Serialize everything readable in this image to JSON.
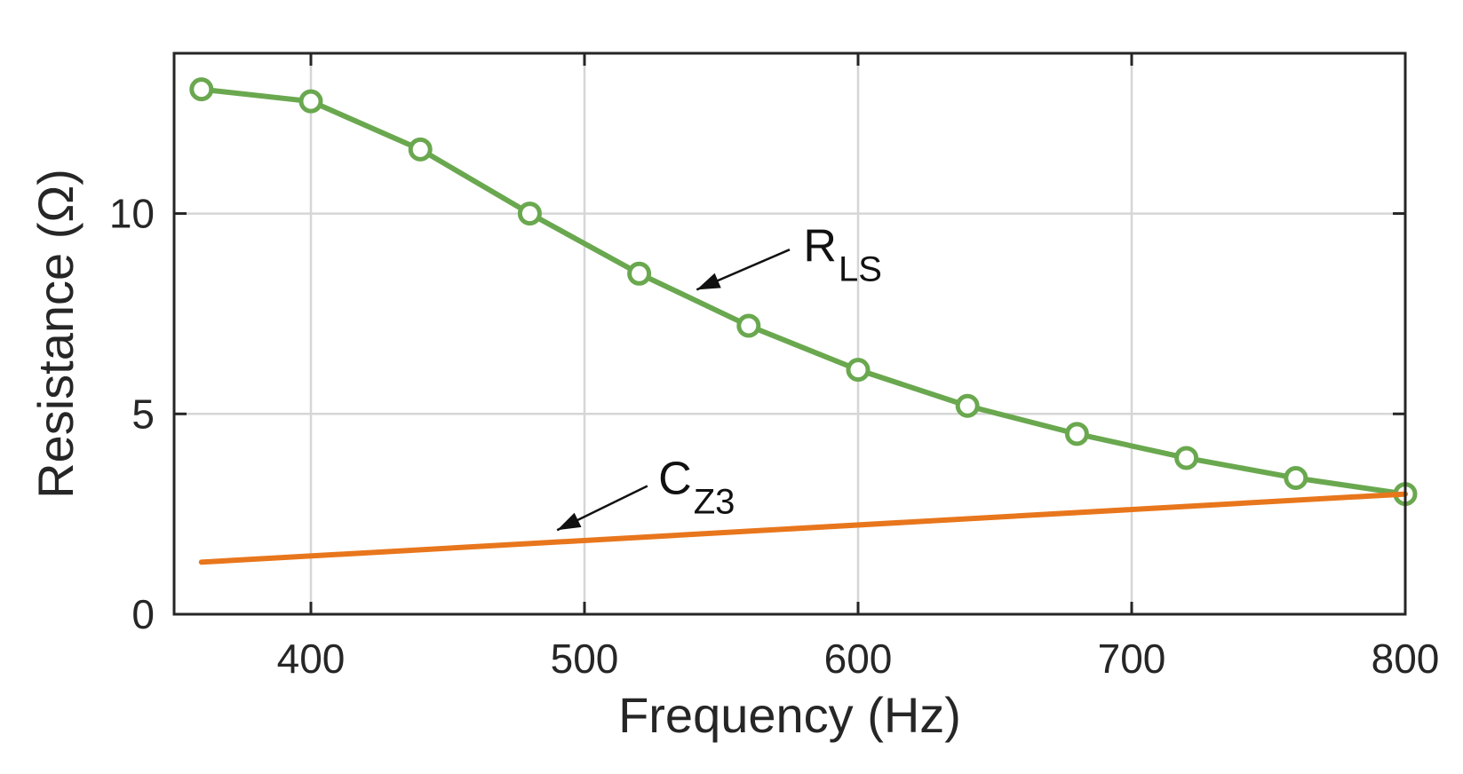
{
  "chart_data": {
    "type": "line",
    "title": "",
    "xlabel": "Frequency (Hz)",
    "ylabel": "Resistance (Ω)",
    "xlim": [
      350,
      800
    ],
    "ylim": [
      0,
      14
    ],
    "x_ticks": [
      400,
      500,
      600,
      700,
      800
    ],
    "x_tick_labels": [
      "400",
      "500",
      "600",
      "700",
      "800"
    ],
    "y_ticks": [
      0,
      5,
      10
    ],
    "y_tick_labels": [
      "0",
      "5",
      "10"
    ],
    "grid": true,
    "series": [
      {
        "name": "R_LS",
        "color": "#6aa84f",
        "marker": "circle",
        "x": [
          360,
          400,
          440,
          480,
          520,
          560,
          600,
          640,
          680,
          720,
          760,
          800
        ],
        "y": [
          13.1,
          12.8,
          11.6,
          10.0,
          8.5,
          7.2,
          6.1,
          5.2,
          4.5,
          3.9,
          3.4,
          3.0
        ]
      },
      {
        "name": "C_Z3",
        "color": "#e8761c",
        "marker": "none",
        "x": [
          360,
          800
        ],
        "y": [
          1.3,
          3.0
        ]
      }
    ],
    "annotations": [
      {
        "series": "R_LS",
        "text_main": "R",
        "text_sub": "LS",
        "text_x": 580,
        "text_y": 8.8,
        "arrow_from_x": 575,
        "arrow_from_y": 9.1,
        "arrow_to_x": 541,
        "arrow_to_y": 8.1
      },
      {
        "series": "C_Z3",
        "text_main": "C",
        "text_sub": "Z3",
        "text_x": 527,
        "text_y": 3.0,
        "arrow_from_x": 523,
        "arrow_from_y": 3.2,
        "arrow_to_x": 490,
        "arrow_to_y": 2.1
      }
    ]
  }
}
